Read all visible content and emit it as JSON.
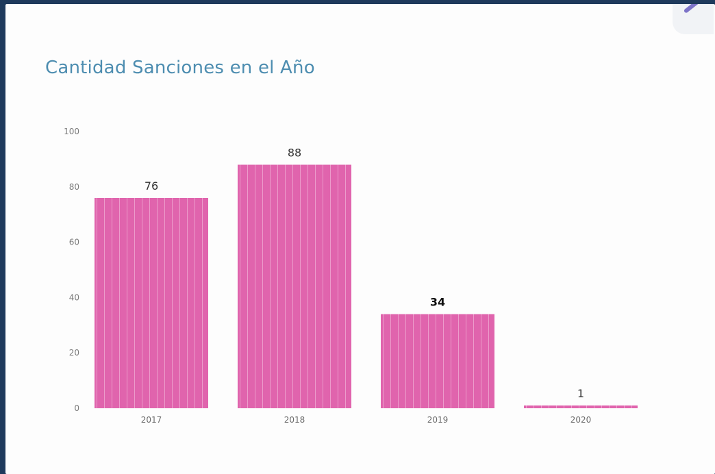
{
  "chart_data": {
    "type": "bar",
    "title": "Cantidad Sanciones en el Año",
    "categories": [
      "2017",
      "2018",
      "2019",
      "2020"
    ],
    "values": [
      76,
      88,
      34,
      1
    ],
    "data_labels": [
      "76",
      "88",
      "34",
      "1"
    ],
    "xlabel": "",
    "ylabel": "",
    "ylim": [
      0,
      100
    ],
    "yticks": [
      "0",
      "20",
      "40",
      "60",
      "80",
      "100"
    ],
    "bar_color": "#e064ad",
    "grid": false,
    "legend": "none"
  }
}
